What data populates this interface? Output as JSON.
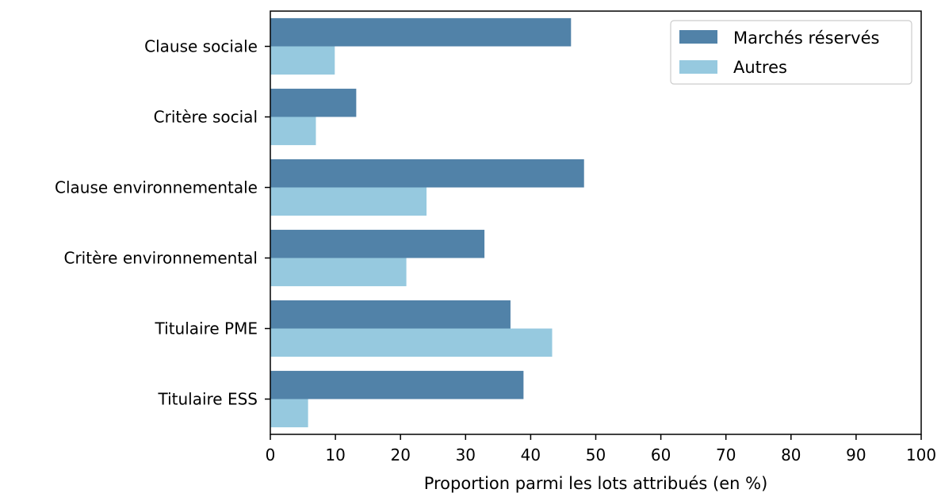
{
  "chart_data": {
    "type": "bar",
    "orientation": "horizontal",
    "categories": [
      "Clause sociale",
      "Critère social",
      "Clause environnementale",
      "Critère environnemental",
      "Titulaire PME",
      "Titulaire ESS"
    ],
    "series": [
      {
        "name": "Marchés réservés",
        "values": [
          46.2,
          13.2,
          48.2,
          32.9,
          36.9,
          38.9
        ],
        "color": "#5182a8"
      },
      {
        "name": "Autres",
        "values": [
          9.9,
          7.0,
          24.0,
          20.9,
          43.3,
          5.8
        ],
        "color": "#96c9df"
      }
    ],
    "xlabel": "Proportion parmi les lots attribués (en %)",
    "ylabel": "",
    "xlim": [
      0,
      100
    ],
    "xticks": [
      "0",
      "10",
      "20",
      "30",
      "40",
      "50",
      "60",
      "70",
      "80",
      "90",
      "100"
    ],
    "grid": false,
    "legend_position": "top-right"
  }
}
